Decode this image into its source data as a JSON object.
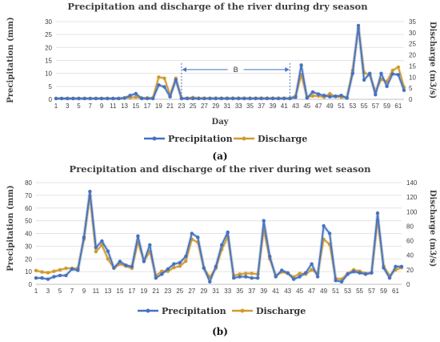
{
  "chart_data": [
    {
      "type": "line",
      "panel_label": "(a)",
      "title": "Precipitation and discharge of the river during dry season",
      "xlabel": "Day",
      "ylabel": "Precipitation (mm)",
      "y2label": "Discharge (m3/s)",
      "ylim": [
        0,
        30
      ],
      "y2lim": [
        0,
        35
      ],
      "yticks": [
        0,
        5,
        10,
        15,
        20,
        25,
        30
      ],
      "y2ticks": [
        0,
        5,
        10,
        15,
        20,
        25,
        30,
        35
      ],
      "x": [
        1,
        2,
        3,
        4,
        5,
        6,
        7,
        8,
        9,
        10,
        11,
        12,
        13,
        14,
        15,
        16,
        17,
        18,
        19,
        20,
        21,
        22,
        23,
        24,
        25,
        26,
        27,
        28,
        29,
        30,
        31,
        32,
        33,
        34,
        35,
        36,
        37,
        38,
        39,
        40,
        41,
        42,
        43,
        44,
        45,
        46,
        47,
        48,
        49,
        50,
        51,
        52,
        53,
        54,
        55,
        56,
        57,
        58,
        59,
        60,
        61,
        62
      ],
      "xtick_labels": [
        "1",
        "3",
        "5",
        "7",
        "9",
        "11",
        "13",
        "15",
        "17",
        "19",
        "21",
        "23",
        "25",
        "27",
        "29",
        "31",
        "33",
        "35",
        "37",
        "39",
        "41",
        "43",
        "45",
        "47",
        "49",
        "51",
        "53",
        "55",
        "57",
        "59",
        "61"
      ],
      "annotation": "B",
      "annotation_range": [
        23,
        42
      ],
      "legend_position": "bottom",
      "grid": true,
      "series": [
        {
          "name": "Precipitation",
          "axis": "left",
          "color": "#4472c4",
          "values": [
            0.3,
            0.3,
            0.3,
            0.3,
            0.3,
            0.3,
            0.3,
            0.3,
            0.3,
            0.3,
            0.3,
            0.3,
            0.5,
            1.5,
            2.2,
            0.3,
            0.3,
            0.3,
            5.5,
            4.8,
            1.0,
            7.5,
            0.3,
            0.3,
            0.3,
            0.3,
            0.3,
            0.3,
            0.3,
            0.3,
            0.3,
            0.3,
            0.3,
            0.3,
            0.3,
            0.3,
            0.3,
            0.3,
            0.3,
            0.3,
            0.3,
            0.3,
            0.8,
            13.2,
            0.5,
            2.8,
            2.0,
            1.5,
            1.0,
            1.2,
            1.5,
            0.5,
            10.0,
            28.5,
            7.5,
            10.0,
            1.8,
            10.0,
            5.0,
            9.8,
            9.5,
            3.5
          ]
        },
        {
          "name": "Discharge",
          "axis": "right",
          "color": "#d19a2e",
          "values": [
            0.4,
            0.4,
            0.4,
            0.4,
            0.4,
            0.4,
            0.4,
            0.4,
            0.4,
            0.4,
            0.4,
            0.4,
            0.6,
            0.8,
            1.0,
            0.6,
            0.6,
            0.6,
            10.0,
            9.5,
            2.0,
            9.5,
            0.5,
            0.5,
            0.8,
            0.5,
            0.5,
            0.5,
            0.5,
            0.5,
            0.5,
            0.5,
            0.5,
            0.5,
            0.5,
            0.5,
            0.5,
            0.5,
            0.5,
            0.5,
            0.5,
            0.5,
            1.5,
            11.0,
            1.0,
            1.5,
            1.5,
            1.0,
            2.5,
            1.2,
            1.0,
            0.8,
            13.0,
            32.0,
            12.0,
            11.0,
            3.5,
            9.0,
            8.0,
            13.0,
            14.5,
            5.5
          ]
        }
      ]
    },
    {
      "type": "line",
      "panel_label": "(b)",
      "title": "Precipitation and discharge of the river during wet season",
      "xlabel": "",
      "ylabel": "Precipitation (mm)",
      "y2label": "Discharge (m3/s)",
      "ylim": [
        0,
        80
      ],
      "y2lim": [
        0,
        140
      ],
      "yticks": [
        0,
        10,
        20,
        30,
        40,
        50,
        60,
        70,
        80
      ],
      "y2ticks": [
        0,
        20,
        40,
        60,
        80,
        100,
        120,
        140
      ],
      "x": [
        1,
        2,
        3,
        4,
        5,
        6,
        7,
        8,
        9,
        10,
        11,
        12,
        13,
        14,
        15,
        16,
        17,
        18,
        19,
        20,
        21,
        22,
        23,
        24,
        25,
        26,
        27,
        28,
        29,
        30,
        31,
        32,
        33,
        34,
        35,
        36,
        37,
        38,
        39,
        40,
        41,
        42,
        43,
        44,
        45,
        46,
        47,
        48,
        49,
        50,
        51,
        52,
        53,
        54,
        55,
        56,
        57,
        58,
        59,
        60,
        61,
        62
      ],
      "xtick_labels": [
        "1",
        "3",
        "5",
        "7",
        "9",
        "11",
        "13",
        "15",
        "17",
        "19",
        "21",
        "23",
        "25",
        "27",
        "29",
        "31",
        "33",
        "35",
        "37",
        "39",
        "41",
        "43",
        "45",
        "47",
        "49",
        "51",
        "53",
        "55",
        "57",
        "59",
        "61"
      ],
      "legend_position": "bottom",
      "grid": true,
      "series": [
        {
          "name": "Precipitation",
          "axis": "left",
          "color": "#4472c4",
          "values": [
            5,
            5,
            4,
            6,
            7,
            7,
            12,
            11,
            37,
            73,
            29,
            34,
            26,
            13,
            18,
            15,
            14,
            38,
            18,
            31,
            5,
            8,
            12,
            16,
            17,
            22,
            40,
            37,
            13,
            2,
            14,
            31,
            41,
            5,
            6,
            6,
            5,
            5,
            50,
            22,
            6,
            11,
            9,
            4,
            6,
            9,
            16,
            6,
            46,
            40,
            3,
            2,
            8,
            10,
            9,
            8,
            9,
            56,
            13,
            5,
            14,
            14
          ]
        },
        {
          "name": "Discharge",
          "axis": "right",
          "color": "#d19a2e",
          "values": [
            19,
            17,
            16,
            18,
            20,
            22,
            22,
            22,
            62,
            122,
            45,
            54,
            35,
            22,
            28,
            25,
            22,
            58,
            32,
            45,
            12,
            18,
            18,
            23,
            25,
            32,
            62,
            58,
            22,
            10,
            22,
            48,
            65,
            12,
            14,
            15,
            15,
            14,
            75,
            35,
            12,
            17,
            15,
            10,
            15,
            14,
            20,
            15,
            62,
            55,
            8,
            7,
            15,
            20,
            18,
            15,
            16,
            88,
            25,
            12,
            20,
            23
          ]
        }
      ]
    }
  ]
}
